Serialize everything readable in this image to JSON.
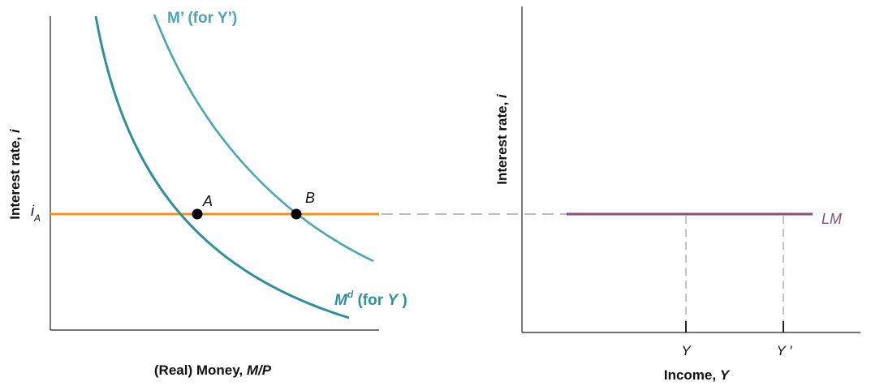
{
  "left_panel": {
    "y_axis_label": "Interest rate, ",
    "y_axis_var": "i",
    "x_axis_label": "(Real) Money, ",
    "x_axis_var": "M/P",
    "rate_label_main": "i",
    "rate_label_sub": "A",
    "point_a": "A",
    "point_b": "B",
    "curve_md_label": {
      "main": "M",
      "sup": "d",
      "rest": " (for ",
      "var": "Y",
      "close": " )"
    },
    "curve_mprime_label": "M’ (for Y’)"
  },
  "right_panel": {
    "y_axis_label": "Interest rate, ",
    "y_axis_var": "i",
    "x_axis_label": "Income, ",
    "x_axis_var": "Y",
    "lm_label": "LM",
    "tick_y": "Y",
    "tick_yprime": "Y ′"
  },
  "colors": {
    "orange_line": "#f0931e",
    "curve_md": "#2f8f9a",
    "curve_mprime": "#4aa6b0",
    "lm_line": "#8a4e7a",
    "dashed": "#b5b5b5",
    "label_teal": "#2f8f9a",
    "label_mprime": "#4aa6b0"
  }
}
